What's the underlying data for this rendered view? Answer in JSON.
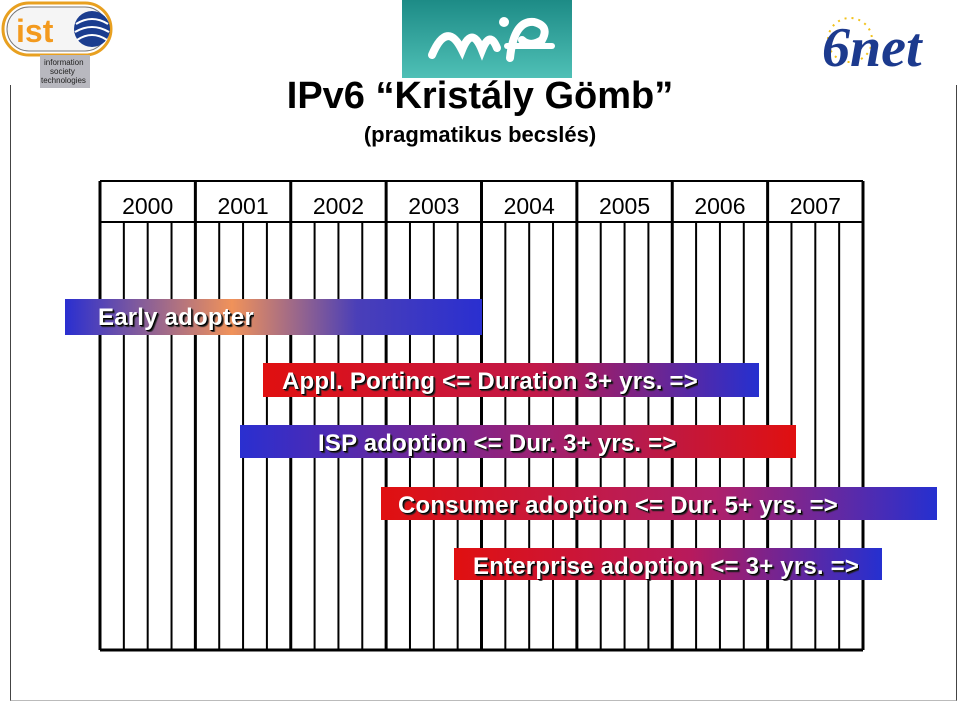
{
  "title": "IPv6 “Kristály Gömb”",
  "subtitle": "(pragmatikus becslés)",
  "logos": {
    "left_name": "ist",
    "left_tagline": [
      "information",
      "society",
      "technologies"
    ],
    "right_name": "6net"
  },
  "years": [
    "2000",
    "2001",
    "2002",
    "2003",
    "2004",
    "2005",
    "2006",
    "2007"
  ],
  "bars": [
    {
      "label": "Early adopter"
    },
    {
      "label": "Appl. Porting <= Duration 3+ yrs. =>"
    },
    {
      "label": "ISP adoption <=  Dur. 3+ yrs. =>"
    },
    {
      "label": "Consumer adoption <= Dur. 5+ yrs. =>"
    },
    {
      "label": "Enterprise adoption <= 3+ yrs. =>"
    }
  ],
  "colors": {
    "blue": "#2a2fd0",
    "red": "#d80f18",
    "orange": "#f0925a",
    "dark_blue": "#1a1f6e"
  }
}
